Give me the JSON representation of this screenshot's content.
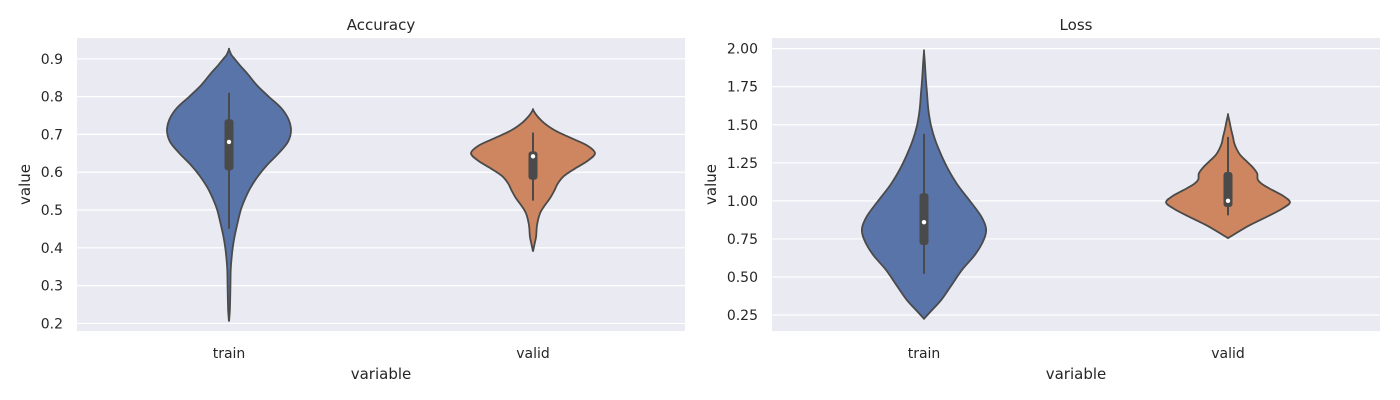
{
  "chart_data": [
    {
      "type": "violin",
      "title": "Accuracy",
      "xlabel": "variable",
      "ylabel": "value",
      "categories": [
        "train",
        "valid"
      ],
      "ylim": [
        0.18,
        0.955
      ],
      "yticks": [
        0.2,
        0.3,
        0.4,
        0.5,
        0.6,
        0.7,
        0.8,
        0.9
      ],
      "ytick_labels": [
        "0.2",
        "0.3",
        "0.4",
        "0.5",
        "0.6",
        "0.7",
        "0.8",
        "0.9"
      ],
      "grid": true,
      "violins": [
        {
          "category": "train",
          "color": "#5874a8",
          "ymin": 0.205,
          "ymax": 0.925,
          "box": [
            0.605,
            0.74
          ],
          "whiskers": [
            0.45,
            0.81
          ],
          "median": 0.68,
          "density": [
            [
              0.205,
              0
            ],
            [
              0.23,
              0.012
            ],
            [
              0.26,
              0.018
            ],
            [
              0.3,
              0.023
            ],
            [
              0.34,
              0.027
            ],
            [
              0.37,
              0.04
            ],
            [
              0.4,
              0.06
            ],
            [
              0.43,
              0.09
            ],
            [
              0.46,
              0.13
            ],
            [
              0.5,
              0.19
            ],
            [
              0.53,
              0.26
            ],
            [
              0.56,
              0.35
            ],
            [
              0.59,
              0.47
            ],
            [
              0.62,
              0.62
            ],
            [
              0.65,
              0.8
            ],
            [
              0.68,
              0.95
            ],
            [
              0.71,
              1.0
            ],
            [
              0.74,
              0.96
            ],
            [
              0.77,
              0.84
            ],
            [
              0.8,
              0.64
            ],
            [
              0.83,
              0.45
            ],
            [
              0.86,
              0.3
            ],
            [
              0.88,
              0.19
            ],
            [
              0.9,
              0.09
            ],
            [
              0.91,
              0.04
            ],
            [
              0.925,
              0
            ]
          ]
        },
        {
          "category": "valid",
          "color": "#cd865f",
          "ymin": 0.39,
          "ymax": 0.765,
          "box": [
            0.58,
            0.655
          ],
          "whiskers": [
            0.525,
            0.705
          ],
          "median": 0.642,
          "density": [
            [
              0.39,
              0
            ],
            [
              0.41,
              0.025
            ],
            [
              0.43,
              0.05
            ],
            [
              0.46,
              0.065
            ],
            [
              0.49,
              0.11
            ],
            [
              0.51,
              0.18
            ],
            [
              0.53,
              0.27
            ],
            [
              0.55,
              0.34
            ],
            [
              0.57,
              0.4
            ],
            [
              0.59,
              0.5
            ],
            [
              0.61,
              0.68
            ],
            [
              0.63,
              0.88
            ],
            [
              0.65,
              1.0
            ],
            [
              0.67,
              0.88
            ],
            [
              0.69,
              0.62
            ],
            [
              0.71,
              0.36
            ],
            [
              0.73,
              0.18
            ],
            [
              0.75,
              0.06
            ],
            [
              0.765,
              0
            ]
          ]
        }
      ]
    },
    {
      "type": "violin",
      "title": "Loss",
      "xlabel": "variable",
      "ylabel": "value",
      "categories": [
        "train",
        "valid"
      ],
      "ylim": [
        0.145,
        2.07
      ],
      "yticks": [
        0.25,
        0.5,
        0.75,
        1.0,
        1.25,
        1.5,
        1.75,
        2.0
      ],
      "ytick_labels": [
        "0.25",
        "0.50",
        "0.75",
        "1.00",
        "1.25",
        "1.50",
        "1.75",
        "2.00"
      ],
      "grid": true,
      "violins": [
        {
          "category": "train",
          "color": "#5874a8",
          "ymin": 0.225,
          "ymax": 1.98,
          "box": [
            0.71,
            1.05
          ],
          "whiskers": [
            0.52,
            1.44
          ],
          "median": 0.86,
          "density": [
            [
              0.225,
              0
            ],
            [
              0.27,
              0.1
            ],
            [
              0.35,
              0.28
            ],
            [
              0.45,
              0.45
            ],
            [
              0.55,
              0.62
            ],
            [
              0.65,
              0.83
            ],
            [
              0.75,
              0.97
            ],
            [
              0.82,
              1.0
            ],
            [
              0.9,
              0.92
            ],
            [
              1.0,
              0.74
            ],
            [
              1.1,
              0.55
            ],
            [
              1.2,
              0.4
            ],
            [
              1.3,
              0.28
            ],
            [
              1.4,
              0.18
            ],
            [
              1.5,
              0.11
            ],
            [
              1.6,
              0.07
            ],
            [
              1.7,
              0.05
            ],
            [
              1.8,
              0.03
            ],
            [
              1.9,
              0.015
            ],
            [
              1.98,
              0
            ]
          ]
        },
        {
          "category": "valid",
          "color": "#cd865f",
          "ymin": 0.755,
          "ymax": 1.565,
          "box": [
            0.96,
            1.19
          ],
          "whiskers": [
            0.905,
            1.42
          ],
          "median": 1.0,
          "density": [
            [
              0.755,
              0
            ],
            [
              0.78,
              0.1
            ],
            [
              0.84,
              0.35
            ],
            [
              0.9,
              0.65
            ],
            [
              0.95,
              0.88
            ],
            [
              0.99,
              1.0
            ],
            [
              1.03,
              0.9
            ],
            [
              1.07,
              0.72
            ],
            [
              1.11,
              0.55
            ],
            [
              1.14,
              0.48
            ],
            [
              1.18,
              0.47
            ],
            [
              1.22,
              0.4
            ],
            [
              1.26,
              0.3
            ],
            [
              1.3,
              0.2
            ],
            [
              1.34,
              0.14
            ],
            [
              1.38,
              0.1
            ],
            [
              1.42,
              0.08
            ],
            [
              1.47,
              0.05
            ],
            [
              1.52,
              0.025
            ],
            [
              1.565,
              0
            ]
          ]
        }
      ]
    }
  ]
}
